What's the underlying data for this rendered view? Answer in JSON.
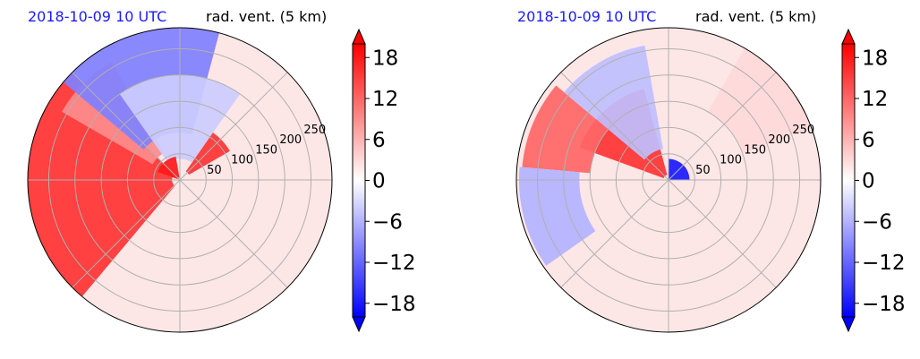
{
  "chart_data": [
    {
      "type": "heatmap",
      "projection": "polar",
      "title_left": "2018-10-09 10 UTC",
      "title_right": "rad. vent. (5 km)",
      "radial_ticks": [
        50,
        100,
        150,
        200,
        250
      ],
      "radial_max": 290,
      "colorbar": {
        "ticks": [
          18,
          12,
          6,
          0,
          -6,
          -12,
          -18
        ],
        "tick_labels": [
          "18",
          "12",
          "6",
          "0",
          "−6",
          "−12",
          "−18"
        ],
        "vmin": -20,
        "vmax": 20,
        "levels": 20,
        "extend": "both",
        "cmap": "bwr"
      },
      "regions": [
        {
          "value": 16,
          "r": [
            15,
            290
          ],
          "theta_deg": [
            135,
            230
          ]
        },
        {
          "value": 9,
          "r": [
            60,
            260
          ],
          "theta_deg": [
            120,
            150
          ]
        },
        {
          "value": -10,
          "r": [
            90,
            290
          ],
          "theta_deg": [
            75,
            140
          ]
        },
        {
          "value": -4,
          "r": [
            40,
            200
          ],
          "theta_deg": [
            55,
            125
          ]
        },
        {
          "value": 16,
          "r": [
            20,
            110
          ],
          "theta_deg": [
            30,
            55
          ]
        },
        {
          "value": 18,
          "r": [
            5,
            45
          ],
          "theta_deg": [
            100,
            160
          ]
        }
      ]
    },
    {
      "type": "heatmap",
      "projection": "polar",
      "title_left": "2018-10-09 10 UTC",
      "title_right": "rad. vent. (5 km)",
      "radial_ticks": [
        50,
        100,
        150,
        200,
        250
      ],
      "radial_max": 290,
      "colorbar": {
        "ticks": [
          18,
          12,
          6,
          0,
          -6,
          -12,
          -18
        ],
        "tick_labels": [
          "18",
          "12",
          "6",
          "0",
          "−6",
          "−12",
          "−18"
        ],
        "vmin": -20,
        "vmax": 20,
        "levels": 20,
        "extend": "both",
        "cmap": "bwr"
      },
      "regions": [
        {
          "value": 16,
          "r": [
            10,
            180
          ],
          "theta_deg": [
            105,
            160
          ]
        },
        {
          "value": 12,
          "r": [
            150,
            280
          ],
          "theta_deg": [
            140,
            175
          ]
        },
        {
          "value": -5,
          "r": [
            60,
            260
          ],
          "theta_deg": [
            100,
            140
          ]
        },
        {
          "value": -6,
          "r": [
            170,
            285
          ],
          "theta_deg": [
            175,
            215
          ]
        },
        {
          "value": -18,
          "r": [
            0,
            40
          ],
          "theta_deg": [
            0,
            90
          ]
        },
        {
          "value": 3,
          "r": [
            150,
            290
          ],
          "theta_deg": [
            20,
            60
          ]
        }
      ]
    }
  ]
}
